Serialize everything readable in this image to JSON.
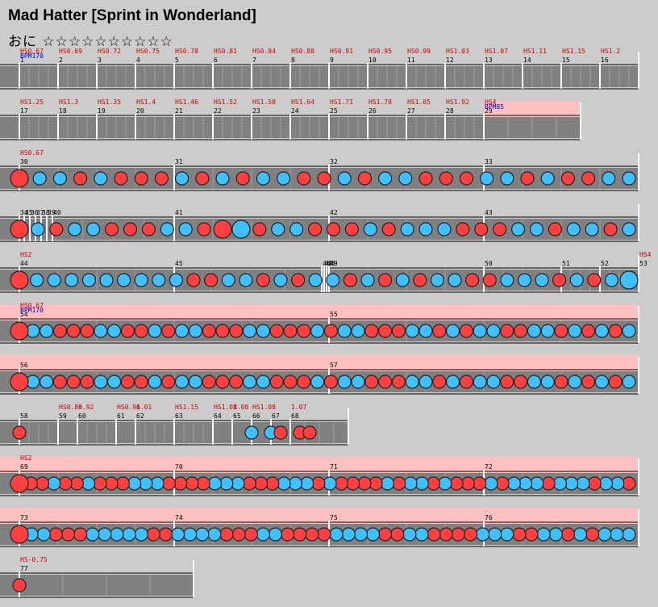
{
  "header": {
    "title": "Mad Hatter [Sprint in Wonderland]",
    "subtitle": "おに ☆☆☆☆☆☆☆☆☆☆"
  },
  "colors": {
    "don": "#ff4040",
    "ka": "#40c0ff",
    "rowBg": "#808080",
    "gogo": "#ffc0c0",
    "hs": "#cc0000",
    "bpm": "#0000cc"
  },
  "rows": [
    {
      "measures": [
        {
          "num": "1",
          "hs": "HS0.67",
          "bpm": "BPM170"
        },
        {
          "num": "2",
          "hs": "HS0.69"
        },
        {
          "num": "3",
          "hs": "HS0.72"
        },
        {
          "num": "4",
          "hs": "HS0.75"
        },
        {
          "num": "5",
          "hs": "HS0.78"
        },
        {
          "num": "6",
          "hs": "HS0.81"
        },
        {
          "num": "7",
          "hs": "HS0.84"
        },
        {
          "num": "8",
          "hs": "HS0.88"
        },
        {
          "num": "9",
          "hs": "HS0.91"
        },
        {
          "num": "10",
          "hs": "HS0.95"
        },
        {
          "num": "11",
          "hs": "HS0.99"
        },
        {
          "num": "12",
          "hs": "HS1.03"
        },
        {
          "num": "13",
          "hs": "HS1.07"
        },
        {
          "num": "14",
          "hs": "HS1.11"
        },
        {
          "num": "15",
          "hs": "HS1.15"
        },
        {
          "num": "16",
          "hs": "HS1.2"
        }
      ]
    },
    {
      "measures": [
        {
          "num": "17",
          "hs": "HS1.25"
        },
        {
          "num": "18",
          "hs": "HS1.3"
        },
        {
          "num": "19",
          "hs": "HS1.35"
        },
        {
          "num": "20",
          "hs": "HS1.4"
        },
        {
          "num": "21",
          "hs": "HS1.46"
        },
        {
          "num": "22",
          "hs": "HS1.52"
        },
        {
          "num": "23",
          "hs": "HS1.58"
        },
        {
          "num": "24",
          "hs": "HS1.64"
        },
        {
          "num": "25",
          "hs": "HS1.71"
        },
        {
          "num": "26",
          "hs": "HS1.78"
        },
        {
          "num": "27",
          "hs": "HS1.85"
        },
        {
          "num": "28",
          "hs": "HS1.92"
        },
        {
          "num": "29",
          "hs": "HS4",
          "bpm": "BPM85"
        }
      ]
    },
    {
      "measures": [
        {
          "num": "30",
          "hs": "HS0.67"
        },
        {
          "num": "31"
        },
        {
          "num": "32"
        },
        {
          "num": "33"
        }
      ]
    },
    {
      "measures": [
        {
          "num": "34"
        },
        {
          "num": "35"
        },
        {
          "num": "36"
        },
        {
          "num": "37"
        },
        {
          "num": "38"
        },
        {
          "num": "39"
        },
        {
          "num": "40"
        },
        {
          "num": "41"
        },
        {
          "num": "42"
        },
        {
          "num": "43"
        }
      ]
    },
    {
      "measures": [
        {
          "num": "44",
          "hs": "HS2"
        },
        {
          "num": "45"
        },
        {
          "num": "46"
        },
        {
          "num": "47"
        },
        {
          "num": "48"
        },
        {
          "num": "49"
        },
        {
          "num": "50"
        },
        {
          "num": "51"
        },
        {
          "num": "52"
        },
        {
          "num": "53",
          "hs": "HS4"
        }
      ]
    },
    {
      "measures": [
        {
          "num": "54",
          "hs": "HS0.67",
          "bpm": "BPM170"
        },
        {
          "num": "55"
        }
      ]
    },
    {
      "measures": [
        {
          "num": "56"
        },
        {
          "num": "57"
        }
      ]
    },
    {
      "measures": [
        {
          "num": "58"
        },
        {
          "num": "59",
          "hs": "HS0.86"
        },
        {
          "num": "60",
          "hs": "0.92"
        },
        {
          "num": "61",
          "hs": "HS0.96"
        },
        {
          "num": "62",
          "hs": "1.01"
        },
        {
          "num": "63",
          "hs": "HS1.15"
        },
        {
          "num": "64",
          "hs": "HS1.08"
        },
        {
          "num": "65",
          "hs": "1.08"
        },
        {
          "num": "66",
          "hs": "HS1.08"
        },
        {
          "num": "67"
        },
        {
          "num": "68",
          "hs": "1.07"
        }
      ]
    },
    {
      "measures": [
        {
          "num": "69",
          "hs": "HS2"
        },
        {
          "num": "70"
        },
        {
          "num": "71"
        },
        {
          "num": "72"
        }
      ]
    },
    {
      "measures": [
        {
          "num": "73"
        },
        {
          "num": "74"
        },
        {
          "num": "75"
        },
        {
          "num": "76"
        }
      ]
    },
    {
      "measures": [
        {
          "num": "77",
          "hs": "HS-0.75"
        }
      ]
    }
  ]
}
